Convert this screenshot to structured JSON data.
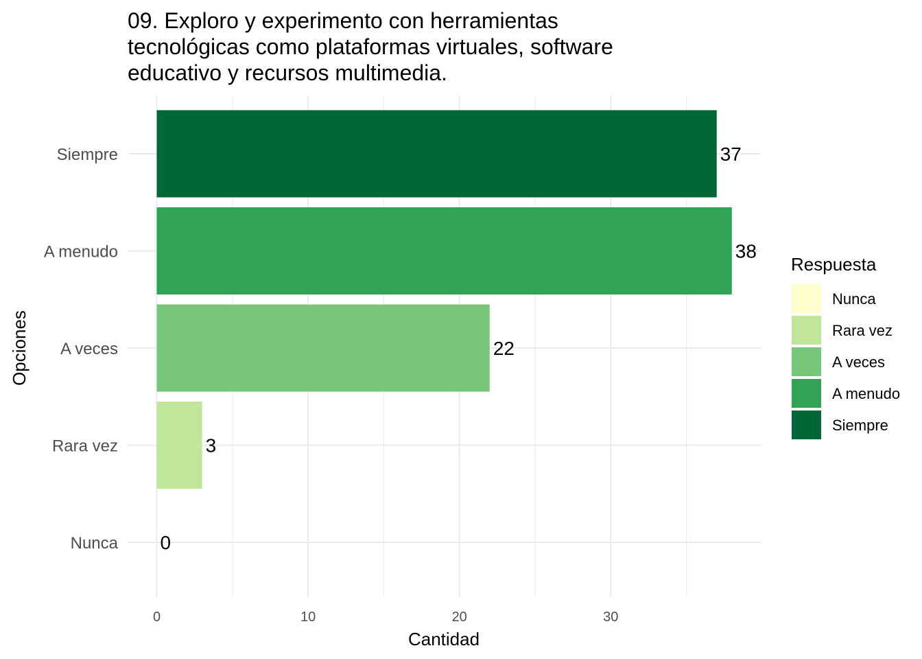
{
  "chart_data": {
    "type": "bar",
    "orientation": "horizontal",
    "title_lines": [
      "09. Exploro y experimento con herramientas",
      "tecnológicas como plataformas virtuales, software",
      "educativo y recursos multimedia."
    ],
    "categories": [
      "Nunca",
      "Rara vez",
      "A veces",
      "A menudo",
      "Siempre"
    ],
    "values": [
      0,
      3,
      22,
      38,
      37
    ],
    "colors": [
      "#ffffcc",
      "#c2e699",
      "#78c679",
      "#31a354",
      "#006837"
    ],
    "xlabel": "Cantidad",
    "ylabel": "Opciones",
    "xticks": [
      0,
      10,
      20,
      30
    ],
    "xlim": [
      0,
      39.9
    ],
    "grid": true,
    "legend": {
      "title": "Respuesta",
      "position": "right",
      "entries": [
        "Nunca",
        "Rara vez",
        "A veces",
        "A menudo",
        "Siempre"
      ]
    }
  }
}
